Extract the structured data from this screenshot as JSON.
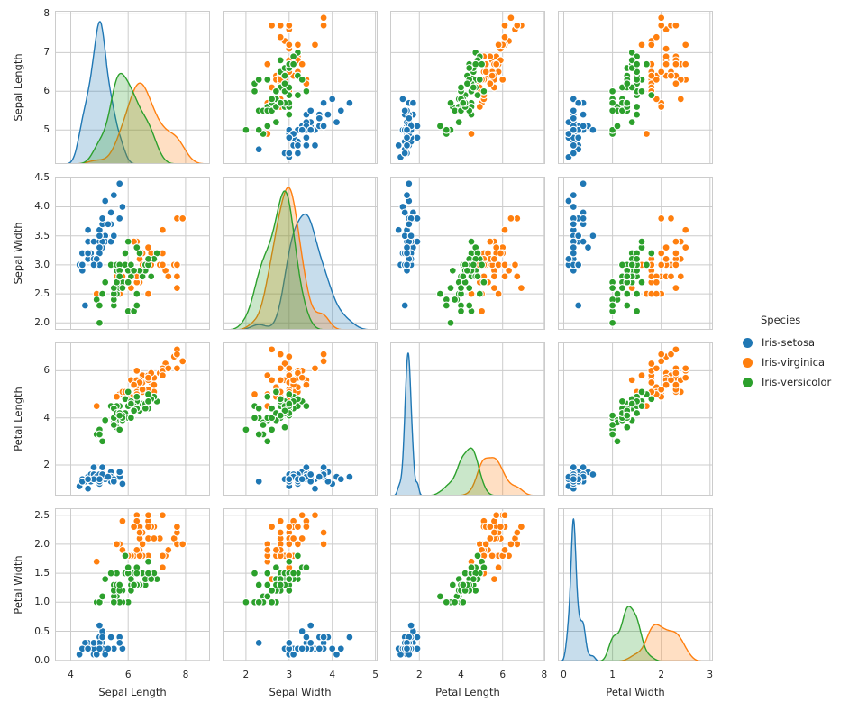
{
  "chart_data": {
    "type": "scatter",
    "subtype": "pairplot-scatter-matrix",
    "title": "",
    "diagonal": "kde",
    "grid": true,
    "grid_color": "#cccccc",
    "text_color": "#262626",
    "background_color": "#ffffff",
    "variables": [
      "Sepal Length",
      "Sepal Width",
      "Petal Length",
      "Petal Width"
    ],
    "col_lims": [
      [
        3.45,
        8.85
      ],
      [
        1.46,
        5.05
      ],
      [
        0.6,
        8.05
      ],
      [
        -0.12,
        3.06
      ]
    ],
    "row_lims": [
      [
        4.12,
        8.08
      ],
      [
        1.88,
        4.52
      ],
      [
        0.7,
        7.2
      ],
      [
        -0.02,
        2.62
      ]
    ],
    "col_ticks": [
      [
        4,
        6,
        8
      ],
      [
        2,
        3,
        4,
        5
      ],
      [
        2,
        4,
        6,
        8
      ],
      [
        0,
        1,
        2,
        3
      ]
    ],
    "row_ticks": [
      [
        5,
        6,
        7,
        8
      ],
      [
        2.0,
        2.5,
        3.0,
        3.5,
        4.0,
        4.5
      ],
      [
        2,
        4,
        6
      ],
      [
        0.0,
        0.5,
        1.0,
        1.5,
        2.0,
        2.5
      ]
    ],
    "col_tick_labels": [
      [
        "4",
        "6",
        "8"
      ],
      [
        "2",
        "3",
        "4",
        "5"
      ],
      [
        "2",
        "4",
        "6",
        "8"
      ],
      [
        "0",
        "1",
        "2",
        "3"
      ]
    ],
    "row_tick_labels": [
      [
        "5",
        "6",
        "7",
        "8"
      ],
      [
        "2.0",
        "2.5",
        "3.0",
        "3.5",
        "4.0",
        "4.5"
      ],
      [
        "2",
        "4",
        "6"
      ],
      [
        "0.0",
        "0.5",
        "1.0",
        "1.5",
        "2.0",
        "2.5"
      ]
    ],
    "legend_title": "Species",
    "legend_position": "right",
    "series": [
      {
        "name": "Iris-setosa",
        "color": "#1f77b4",
        "points": [
          [
            5.1,
            3.5,
            1.4,
            0.2
          ],
          [
            4.9,
            3.0,
            1.4,
            0.2
          ],
          [
            4.7,
            3.2,
            1.3,
            0.2
          ],
          [
            4.6,
            3.1,
            1.5,
            0.2
          ],
          [
            5.0,
            3.6,
            1.4,
            0.2
          ],
          [
            5.4,
            3.9,
            1.7,
            0.4
          ],
          [
            4.6,
            3.4,
            1.4,
            0.3
          ],
          [
            5.0,
            3.4,
            1.5,
            0.2
          ],
          [
            4.4,
            2.9,
            1.4,
            0.2
          ],
          [
            4.9,
            3.1,
            1.5,
            0.1
          ],
          [
            5.4,
            3.7,
            1.5,
            0.2
          ],
          [
            4.8,
            3.4,
            1.6,
            0.2
          ],
          [
            4.8,
            3.0,
            1.4,
            0.1
          ],
          [
            4.3,
            3.0,
            1.1,
            0.1
          ],
          [
            5.8,
            4.0,
            1.2,
            0.2
          ],
          [
            5.7,
            4.4,
            1.5,
            0.4
          ],
          [
            5.4,
            3.9,
            1.3,
            0.4
          ],
          [
            5.1,
            3.5,
            1.4,
            0.3
          ],
          [
            5.7,
            3.8,
            1.7,
            0.3
          ],
          [
            5.1,
            3.8,
            1.5,
            0.3
          ],
          [
            5.4,
            3.4,
            1.7,
            0.2
          ],
          [
            5.1,
            3.7,
            1.5,
            0.4
          ],
          [
            4.6,
            3.6,
            1.0,
            0.2
          ],
          [
            5.1,
            3.3,
            1.7,
            0.5
          ],
          [
            4.8,
            3.4,
            1.9,
            0.2
          ],
          [
            5.0,
            3.0,
            1.6,
            0.2
          ],
          [
            5.0,
            3.4,
            1.6,
            0.4
          ],
          [
            5.2,
            3.5,
            1.5,
            0.2
          ],
          [
            5.2,
            3.4,
            1.4,
            0.2
          ],
          [
            4.7,
            3.2,
            1.6,
            0.2
          ],
          [
            4.8,
            3.1,
            1.6,
            0.2
          ],
          [
            5.4,
            3.4,
            1.5,
            0.4
          ],
          [
            5.2,
            4.1,
            1.5,
            0.1
          ],
          [
            5.5,
            4.2,
            1.4,
            0.2
          ],
          [
            4.9,
            3.1,
            1.5,
            0.1
          ],
          [
            5.0,
            3.2,
            1.2,
            0.2
          ],
          [
            5.5,
            3.5,
            1.3,
            0.2
          ],
          [
            4.9,
            3.1,
            1.5,
            0.1
          ],
          [
            4.4,
            3.0,
            1.3,
            0.2
          ],
          [
            5.1,
            3.4,
            1.5,
            0.2
          ],
          [
            5.0,
            3.5,
            1.3,
            0.3
          ],
          [
            4.5,
            2.3,
            1.3,
            0.3
          ],
          [
            4.4,
            3.2,
            1.3,
            0.2
          ],
          [
            5.0,
            3.5,
            1.6,
            0.6
          ],
          [
            5.1,
            3.8,
            1.9,
            0.4
          ],
          [
            4.8,
            3.0,
            1.4,
            0.3
          ],
          [
            5.1,
            3.8,
            1.6,
            0.2
          ],
          [
            4.6,
            3.2,
            1.4,
            0.2
          ],
          [
            5.3,
            3.7,
            1.5,
            0.2
          ],
          [
            5.0,
            3.3,
            1.4,
            0.2
          ]
        ]
      },
      {
        "name": "Iris-virginica",
        "color": "#ff7f0e",
        "points": [
          [
            6.3,
            3.3,
            6.0,
            2.5
          ],
          [
            5.8,
            2.7,
            5.1,
            1.9
          ],
          [
            7.1,
            3.0,
            5.9,
            2.1
          ],
          [
            6.3,
            2.9,
            5.6,
            1.8
          ],
          [
            6.5,
            3.0,
            5.8,
            2.2
          ],
          [
            7.6,
            3.0,
            6.6,
            2.1
          ],
          [
            4.9,
            2.5,
            4.5,
            1.7
          ],
          [
            7.3,
            2.9,
            6.3,
            1.8
          ],
          [
            6.7,
            2.5,
            5.8,
            1.8
          ],
          [
            7.2,
            3.6,
            6.1,
            2.5
          ],
          [
            6.5,
            3.2,
            5.1,
            2.0
          ],
          [
            6.4,
            2.7,
            5.3,
            1.9
          ],
          [
            6.8,
            3.0,
            5.5,
            2.1
          ],
          [
            5.7,
            2.5,
            5.0,
            2.0
          ],
          [
            5.8,
            2.8,
            5.1,
            2.4
          ],
          [
            6.4,
            3.2,
            5.3,
            2.3
          ],
          [
            6.5,
            3.0,
            5.5,
            1.8
          ],
          [
            7.7,
            3.8,
            6.7,
            2.2
          ],
          [
            7.7,
            2.6,
            6.9,
            2.3
          ],
          [
            6.0,
            2.2,
            5.0,
            1.5
          ],
          [
            6.9,
            3.2,
            5.7,
            2.3
          ],
          [
            5.6,
            2.8,
            4.9,
            2.0
          ],
          [
            7.7,
            2.8,
            6.7,
            2.0
          ],
          [
            6.3,
            2.7,
            4.9,
            1.8
          ],
          [
            6.7,
            3.3,
            5.7,
            2.1
          ],
          [
            7.2,
            3.2,
            6.0,
            1.8
          ],
          [
            6.2,
            2.8,
            4.8,
            1.8
          ],
          [
            6.1,
            3.0,
            4.9,
            1.8
          ],
          [
            6.4,
            2.8,
            5.6,
            2.1
          ],
          [
            7.2,
            3.0,
            5.8,
            1.6
          ],
          [
            7.4,
            2.8,
            6.1,
            1.9
          ],
          [
            7.9,
            3.8,
            6.4,
            2.0
          ],
          [
            6.4,
            2.8,
            5.6,
            2.2
          ],
          [
            6.3,
            2.8,
            5.1,
            1.5
          ],
          [
            6.1,
            2.6,
            5.6,
            1.4
          ],
          [
            7.7,
            3.0,
            6.1,
            2.3
          ],
          [
            6.3,
            3.4,
            5.6,
            2.4
          ],
          [
            6.4,
            3.1,
            5.5,
            1.8
          ],
          [
            6.0,
            3.0,
            4.8,
            1.8
          ],
          [
            6.9,
            3.1,
            5.4,
            2.1
          ],
          [
            6.7,
            3.1,
            5.6,
            2.4
          ],
          [
            6.9,
            3.1,
            5.1,
            2.3
          ],
          [
            5.8,
            2.7,
            5.1,
            1.9
          ],
          [
            6.8,
            3.2,
            5.9,
            2.3
          ],
          [
            6.7,
            3.3,
            5.7,
            2.5
          ],
          [
            6.7,
            3.0,
            5.2,
            2.3
          ],
          [
            6.3,
            2.5,
            5.0,
            1.9
          ],
          [
            6.5,
            3.0,
            5.2,
            2.0
          ],
          [
            6.2,
            3.4,
            5.4,
            2.3
          ],
          [
            5.9,
            3.0,
            5.1,
            1.8
          ]
        ]
      },
      {
        "name": "Iris-versicolor",
        "color": "#2ca02c",
        "points": [
          [
            7.0,
            3.2,
            4.7,
            1.4
          ],
          [
            6.4,
            3.2,
            4.5,
            1.5
          ],
          [
            6.9,
            3.1,
            4.9,
            1.5
          ],
          [
            5.5,
            2.3,
            4.0,
            1.3
          ],
          [
            6.5,
            2.8,
            4.6,
            1.5
          ],
          [
            5.7,
            2.8,
            4.5,
            1.3
          ],
          [
            6.3,
            3.3,
            4.7,
            1.6
          ],
          [
            4.9,
            2.4,
            3.3,
            1.0
          ],
          [
            6.6,
            2.9,
            4.6,
            1.3
          ],
          [
            5.2,
            2.7,
            3.9,
            1.4
          ],
          [
            5.0,
            2.0,
            3.5,
            1.0
          ],
          [
            5.9,
            3.0,
            4.2,
            1.5
          ],
          [
            6.0,
            2.2,
            4.0,
            1.0
          ],
          [
            6.1,
            2.9,
            4.7,
            1.4
          ],
          [
            5.6,
            2.9,
            3.6,
            1.3
          ],
          [
            6.7,
            3.1,
            4.4,
            1.4
          ],
          [
            5.6,
            3.0,
            4.5,
            1.5
          ],
          [
            5.8,
            2.7,
            4.1,
            1.0
          ],
          [
            6.2,
            2.2,
            4.5,
            1.5
          ],
          [
            5.6,
            2.5,
            3.9,
            1.1
          ],
          [
            5.9,
            3.2,
            4.8,
            1.8
          ],
          [
            6.1,
            2.8,
            4.0,
            1.3
          ],
          [
            6.3,
            2.5,
            4.9,
            1.5
          ],
          [
            6.1,
            2.8,
            4.7,
            1.2
          ],
          [
            6.4,
            2.9,
            4.3,
            1.3
          ],
          [
            6.6,
            3.0,
            4.4,
            1.4
          ],
          [
            6.8,
            2.8,
            4.8,
            1.4
          ],
          [
            6.7,
            3.0,
            5.0,
            1.7
          ],
          [
            6.0,
            2.9,
            4.5,
            1.5
          ],
          [
            5.7,
            2.6,
            3.5,
            1.0
          ],
          [
            5.5,
            2.4,
            3.8,
            1.1
          ],
          [
            5.5,
            2.4,
            3.7,
            1.0
          ],
          [
            5.8,
            2.7,
            3.9,
            1.2
          ],
          [
            6.0,
            2.7,
            5.1,
            1.6
          ],
          [
            5.4,
            3.0,
            4.5,
            1.5
          ],
          [
            6.0,
            3.4,
            4.5,
            1.6
          ],
          [
            6.7,
            3.1,
            4.7,
            1.5
          ],
          [
            6.3,
            2.3,
            4.4,
            1.3
          ],
          [
            5.6,
            3.0,
            4.1,
            1.3
          ],
          [
            5.5,
            2.5,
            4.0,
            1.3
          ],
          [
            5.5,
            2.6,
            4.4,
            1.2
          ],
          [
            6.1,
            3.0,
            4.6,
            1.4
          ],
          [
            5.8,
            2.6,
            4.0,
            1.2
          ],
          [
            5.0,
            2.3,
            3.3,
            1.0
          ],
          [
            5.6,
            2.7,
            4.2,
            1.3
          ],
          [
            5.7,
            3.0,
            4.2,
            1.2
          ],
          [
            5.7,
            2.9,
            4.2,
            1.3
          ],
          [
            6.2,
            2.9,
            4.3,
            1.3
          ],
          [
            5.1,
            2.5,
            3.0,
            1.1
          ],
          [
            5.7,
            2.8,
            4.1,
            1.3
          ]
        ]
      }
    ]
  }
}
